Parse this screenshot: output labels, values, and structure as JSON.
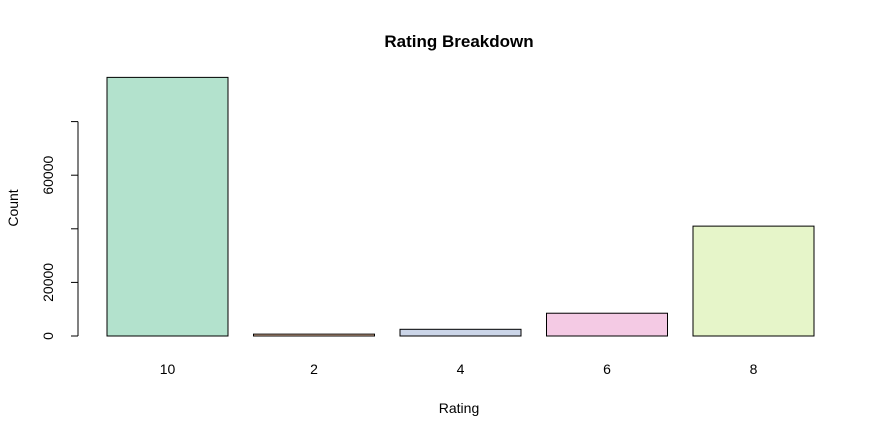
{
  "chart_data": {
    "type": "bar",
    "title": "Rating Breakdown",
    "xlabel": "Rating",
    "ylabel": "Count",
    "categories": [
      "10",
      "2",
      "4",
      "6",
      "8"
    ],
    "values": [
      96500,
      700,
      2500,
      8500,
      41000
    ],
    "colors": [
      "#b3e2cd",
      "#fdcdac",
      "#cbd5e8",
      "#f4cae4",
      "#e6f5c9"
    ],
    "yticks": [
      0,
      20000,
      40000,
      60000,
      80000
    ],
    "ytick_labels": [
      "0",
      "20000",
      "",
      "60000",
      ""
    ],
    "ylim": [
      0,
      96500
    ],
    "grid": false
  }
}
